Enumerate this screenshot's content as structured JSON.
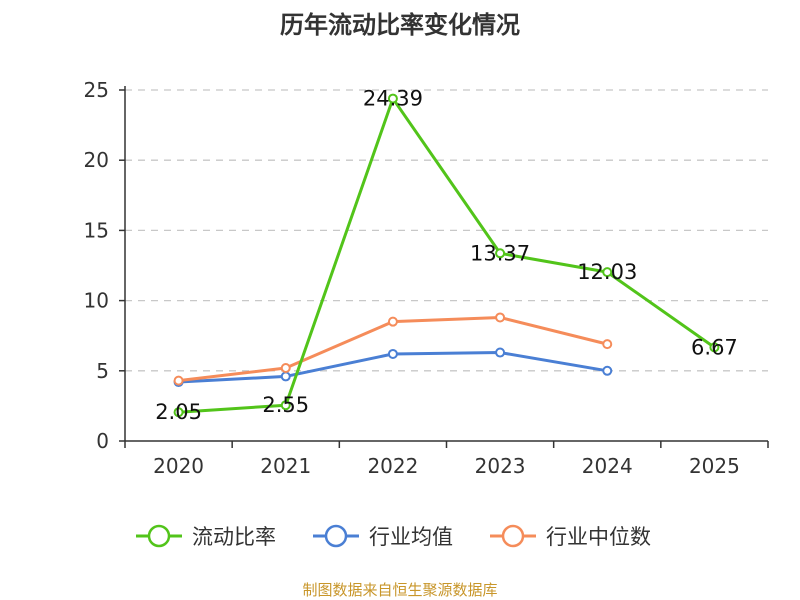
{
  "chart_data": {
    "type": "line",
    "title": "历年流动比率变化情况",
    "categories": [
      "2020",
      "2021",
      "2022",
      "2023",
      "2024",
      "2025"
    ],
    "ylim": [
      0,
      25
    ],
    "yticks": [
      "0",
      "5",
      "10",
      "15",
      "20",
      "25"
    ],
    "grid": true,
    "legend_position": "bottom",
    "series": [
      {
        "name": "流动比率",
        "color": "#52c41a",
        "values": [
          2.05,
          2.55,
          24.39,
          13.37,
          12.03,
          6.67
        ],
        "labels": [
          "2.05",
          "2.55",
          "24.39",
          "13.37",
          "12.03",
          "6.67"
        ]
      },
      {
        "name": "行业均值",
        "color": "#4a7fd4",
        "values": [
          4.2,
          4.6,
          6.2,
          6.3,
          5.0,
          null
        ]
      },
      {
        "name": "行业中位数",
        "color": "#f58c5a",
        "values": [
          4.3,
          5.2,
          8.5,
          8.8,
          6.9,
          null
        ]
      }
    ]
  },
  "source_note": "制图数据来自恒生聚源数据库",
  "source_color": "#c8962a"
}
